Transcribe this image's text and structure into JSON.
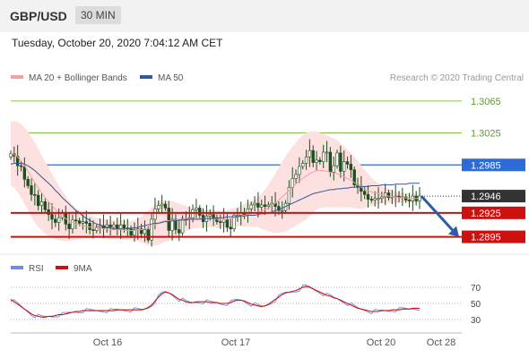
{
  "header": {
    "symbol": "GBP/USD",
    "timeframe": "30 MIN"
  },
  "timestamp": "Tuesday, October 20, 2020 7:04:12 AM CET",
  "colors": {
    "bollinger_fill": "#fde0e0",
    "ma20": "#f4a0a0",
    "ma50": "#2f5a9e",
    "candle": "#1f4e1f",
    "green_level": "#8bc34a",
    "blue_level": "#2f6bd6",
    "red_level": "#cc1111",
    "current_box": "#333333",
    "rsi": "#6b8ee0",
    "rsi_ma": "#cc1111",
    "arrow": "#2a5ca8"
  },
  "chart_data": [
    {
      "type": "candlestick",
      "legend": [
        {
          "label": "MA 20 + Bollinger Bands",
          "color": "#f4a0a0"
        },
        {
          "label": "MA 50",
          "color": "#2f5a9e"
        }
      ],
      "watermark": "Research © 2020 Trading Central",
      "ylim": [
        1.288,
        1.3085
      ],
      "x_ticks": [
        "Oct 16",
        "Oct 17",
        "Oct 20",
        "Oct 28"
      ],
      "levels": [
        {
          "value": 1.3065,
          "label": "1.3065",
          "kind": "resistance-minor",
          "color": "#8bc34a"
        },
        {
          "value": 1.3025,
          "label": "1.3025",
          "kind": "resistance-minor",
          "color": "#8bc34a"
        },
        {
          "value": 1.2985,
          "label": "1.2985",
          "kind": "resistance",
          "color": "#2f6bd6"
        },
        {
          "value": 1.2946,
          "label": "1.2946",
          "kind": "current",
          "color": "#333333"
        },
        {
          "value": 1.2925,
          "label": "1.2925",
          "kind": "support",
          "color": "#cc1111"
        },
        {
          "value": 1.2895,
          "label": "1.2895",
          "kind": "support",
          "color": "#cc1111"
        }
      ],
      "close": [
        1.2999,
        1.2996,
        1.2984,
        1.2983,
        1.2967,
        1.2959,
        1.2948,
        1.2947,
        1.2934,
        1.2939,
        1.2929,
        1.2923,
        1.2917,
        1.2913,
        1.2919,
        1.2925,
        1.2911,
        1.2905,
        1.2916,
        1.2915,
        1.2912,
        1.2914,
        1.2912,
        1.2904,
        1.2903,
        1.2907,
        1.2909,
        1.2906,
        1.291,
        1.2907,
        1.291,
        1.2905,
        1.291,
        1.2906,
        1.2905,
        1.2897,
        1.2904,
        1.2905,
        1.2899,
        1.2904,
        1.2891,
        1.2917,
        1.293,
        1.2934,
        1.2936,
        1.2931,
        1.2903,
        1.2917,
        1.2904,
        1.29,
        1.2918,
        1.2917,
        1.2919,
        1.2929,
        1.2931,
        1.2922,
        1.2914,
        1.2921,
        1.2923,
        1.2919,
        1.2914,
        1.2913,
        1.2917,
        1.2907,
        1.2905,
        1.2922,
        1.2922,
        1.2925,
        1.2923,
        1.293,
        1.2935,
        1.2937,
        1.2932,
        1.2935,
        1.2933,
        1.2935,
        1.2937,
        1.2933,
        1.2928,
        1.2928,
        1.2937,
        1.2957,
        1.2968,
        1.2973,
        1.2983,
        1.2987,
        1.2995,
        1.3003,
        1.2988,
        1.2991,
        1.2989,
        1.3001,
        1.3001,
        1.2976,
        1.2984,
        1.3,
        1.2977,
        1.2989,
        1.2986,
        1.2979,
        1.296,
        1.2957,
        1.2952,
        1.2948,
        1.2942,
        1.2941,
        1.2943,
        1.2943,
        1.2945,
        1.295,
        1.2944,
        1.2945,
        1.2946,
        1.2944,
        1.2945,
        1.2941,
        1.294,
        1.2946,
        1.294,
        1.2946
      ],
      "ma20": [
        1.3,
        1.2998,
        1.2995,
        1.299,
        1.2984,
        1.2977,
        1.297,
        1.2963,
        1.2956,
        1.295,
        1.2944,
        1.2939,
        1.2934,
        1.2929,
        1.2925,
        1.2921,
        1.2918,
        1.2915,
        1.2913,
        1.2911,
        1.291,
        1.2909,
        1.2908,
        1.2907,
        1.2907,
        1.2906,
        1.2906,
        1.2905,
        1.2905,
        1.2904,
        1.2904,
        1.2904,
        1.2904,
        1.2903,
        1.2903,
        1.2903,
        1.2903,
        1.2904,
        1.2904,
        1.2905,
        1.2906,
        1.2908,
        1.291,
        1.2912,
        1.2914,
        1.2915,
        1.2915,
        1.2916,
        1.2916,
        1.2917,
        1.2917,
        1.2918,
        1.2918,
        1.2918,
        1.2918,
        1.2918,
        1.2918,
        1.2918,
        1.2918,
        1.2918,
        1.2917,
        1.2917,
        1.2917,
        1.2917,
        1.2918,
        1.2919,
        1.292,
        1.2921,
        1.2922,
        1.2923,
        1.2924,
        1.2925,
        1.2926,
        1.2927,
        1.2929,
        1.2931,
        1.2934,
        1.2937,
        1.2941,
        1.2945,
        1.2949,
        1.2953,
        1.2957,
        1.2961,
        1.2965,
        1.2968,
        1.2971,
        1.2974,
        1.2976,
        1.2978,
        1.2978,
        1.2978,
        1.2977,
        1.2976,
        1.2975,
        1.2974,
        1.2972,
        1.297,
        1.2968,
        1.2966,
        1.2963,
        1.296,
        1.2957,
        1.2955,
        1.2953,
        1.2951,
        1.295,
        1.2949,
        1.2948,
        1.2947,
        1.2946,
        1.2945,
        1.2945,
        1.2944,
        1.2944,
        1.2944,
        1.2943,
        1.2943,
        1.2943,
        1.2943
      ],
      "bb_width": [
        0.004,
        0.0042,
        0.0044,
        0.0046,
        0.0048,
        0.0049,
        0.005,
        0.005,
        0.0049,
        0.0047,
        0.0045,
        0.0043,
        0.004,
        0.0037,
        0.0034,
        0.0031,
        0.0028,
        0.0025,
        0.0022,
        0.002,
        0.0018,
        0.0016,
        0.0015,
        0.0014,
        0.0013,
        0.0012,
        0.0012,
        0.0012,
        0.0012,
        0.0012,
        0.0012,
        0.0012,
        0.0012,
        0.0012,
        0.0012,
        0.0012,
        0.0013,
        0.0014,
        0.0016,
        0.0019,
        0.0022,
        0.0024,
        0.0026,
        0.0027,
        0.0027,
        0.0026,
        0.0025,
        0.0024,
        0.0022,
        0.002,
        0.0018,
        0.0016,
        0.0014,
        0.0013,
        0.0012,
        0.0012,
        0.0011,
        0.0011,
        0.0011,
        0.0011,
        0.0011,
        0.0011,
        0.0011,
        0.0011,
        0.0012,
        0.0012,
        0.0012,
        0.0013,
        0.0014,
        0.0015,
        0.0016,
        0.0017,
        0.0019,
        0.0022,
        0.0025,
        0.0029,
        0.0033,
        0.0037,
        0.0041,
        0.0044,
        0.0047,
        0.0049,
        0.0051,
        0.0052,
        0.0053,
        0.0054,
        0.0054,
        0.0053,
        0.0051,
        0.0049,
        0.0047,
        0.0046,
        0.0045,
        0.0044,
        0.0043,
        0.0042,
        0.004,
        0.0038,
        0.0036,
        0.0034,
        0.0032,
        0.003,
        0.0027,
        0.0024,
        0.0021,
        0.0018,
        0.0015,
        0.0013,
        0.0011,
        0.001,
        0.0009,
        0.0008,
        0.0007,
        0.0007,
        0.0006,
        0.0006,
        0.0006,
        0.0006,
        0.0006,
        0.0006
      ],
      "ma50": [
        1.2986,
        1.2987,
        1.2987,
        1.2987,
        1.2986,
        1.2984,
        1.2981,
        1.2978,
        1.2974,
        1.297,
        1.2966,
        1.2962,
        1.2958,
        1.2953,
        1.2949,
        1.2944,
        1.294,
        1.2936,
        1.2932,
        1.2928,
        1.2925,
        1.2921,
        1.2918,
        1.2916,
        1.2913,
        1.2911,
        1.291,
        1.2908,
        1.2907,
        1.2906,
        1.2905,
        1.2905,
        1.2905,
        1.2905,
        1.2905,
        1.2906,
        1.2906,
        1.2907,
        1.2908,
        1.2909,
        1.291,
        1.2911,
        1.2912,
        1.2912,
        1.2913,
        1.2914,
        1.2914,
        1.2915,
        1.2915,
        1.2916,
        1.2916,
        1.2916,
        1.2917,
        1.2917,
        1.2917,
        1.2917,
        1.2918,
        1.2918,
        1.2918,
        1.2918,
        1.2918,
        1.2919,
        1.2919,
        1.292,
        1.292,
        1.292,
        1.292,
        1.2921,
        1.2921,
        1.2922,
        1.2922,
        1.2922,
        1.2923,
        1.2924,
        1.2924,
        1.2925,
        1.2926,
        1.2928,
        1.2929,
        1.2931,
        1.2933,
        1.2935,
        1.2937,
        1.2939,
        1.2941,
        1.2943,
        1.2945,
        1.2947,
        1.2949,
        1.295,
        1.2951,
        1.2952,
        1.2953,
        1.2954,
        1.2954,
        1.2955,
        1.2955,
        1.2956,
        1.2956,
        1.2957,
        1.2957,
        1.2957,
        1.2958,
        1.2958,
        1.2958,
        1.2959,
        1.2959,
        1.2959,
        1.296,
        1.296,
        1.296,
        1.296,
        1.2961,
        1.2961,
        1.2961,
        1.2961,
        1.2962,
        1.2962,
        1.2962,
        1.2962
      ],
      "forecast": {
        "from": 1.2946,
        "to": 1.2895
      }
    },
    {
      "type": "line",
      "legend": [
        {
          "label": "RSI",
          "color": "#6b8ee0"
        },
        {
          "label": "9MA",
          "color": "#cc1111"
        }
      ],
      "ylim": [
        20,
        80
      ],
      "y_ticks": [
        70,
        50,
        30
      ],
      "series": [
        {
          "name": "RSI",
          "values": [
            55,
            52,
            49,
            46,
            43,
            40,
            37,
            35,
            34,
            33,
            33,
            34,
            34,
            35,
            36,
            36,
            37,
            38,
            39,
            40,
            40,
            41,
            41,
            41,
            41,
            41,
            41,
            41,
            41,
            41,
            41,
            42,
            42,
            42,
            42,
            42,
            42,
            42,
            42,
            43,
            45,
            48,
            53,
            58,
            62,
            64,
            63,
            61,
            58,
            55,
            54,
            52,
            51,
            51,
            52,
            52,
            52,
            52,
            51,
            51,
            51,
            50,
            50,
            50,
            51,
            53,
            54,
            54,
            53,
            51,
            49,
            48,
            47,
            46,
            47,
            49,
            52,
            55,
            58,
            61,
            63,
            64,
            65,
            66,
            68,
            70,
            71,
            70,
            68,
            66,
            64,
            62,
            60,
            59,
            57,
            56,
            54,
            52,
            50,
            48,
            46,
            44,
            43,
            42,
            41,
            40,
            40,
            40,
            41,
            41,
            41,
            42,
            42,
            42,
            43,
            43,
            43,
            44,
            44,
            44
          ]
        },
        {
          "name": "9MA",
          "values": [
            55,
            52,
            49,
            46,
            43,
            40,
            37,
            35,
            34,
            33,
            33,
            34,
            34,
            35,
            36,
            36,
            37,
            38,
            39,
            40,
            40,
            41,
            41,
            41,
            41,
            41,
            41,
            41,
            41,
            41,
            41,
            42,
            42,
            42,
            42,
            42,
            42,
            42,
            42,
            43,
            45,
            48,
            53,
            58,
            62,
            64,
            63,
            61,
            58,
            55,
            54,
            52,
            51,
            51,
            52,
            52,
            52,
            52,
            51,
            51,
            51,
            50,
            50,
            50,
            51,
            53,
            54,
            54,
            53,
            51,
            49,
            48,
            47,
            46,
            47,
            49,
            52,
            55,
            58,
            61,
            63,
            64,
            65,
            66,
            68,
            70,
            71,
            70,
            68,
            66,
            64,
            62,
            60,
            59,
            57,
            56,
            54,
            52,
            50,
            48,
            46,
            44,
            43,
            42,
            41,
            40,
            40,
            40,
            41,
            41,
            41,
            42,
            42,
            42,
            43,
            43,
            43,
            44,
            44,
            44
          ]
        }
      ]
    }
  ]
}
